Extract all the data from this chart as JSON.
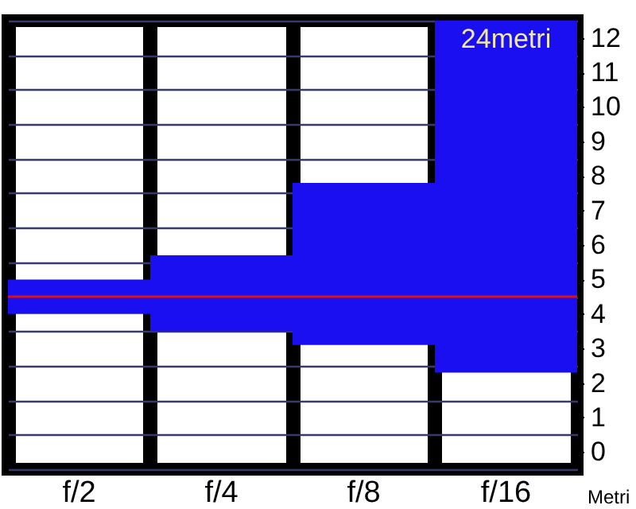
{
  "chart_data": {
    "type": "bar",
    "ylabel": "Metri",
    "categories": [
      "f/2",
      "f/4",
      "f/8",
      "f/16"
    ],
    "base": [
      4.0,
      3.5,
      3.1,
      2.3
    ],
    "values": [
      1.0,
      2.2,
      4.7,
      10.2
    ],
    "color": "#1a0ff0",
    "ylim": [
      -0.5,
      12.5
    ],
    "yticks": [
      {
        "value": -0.5,
        "label": null
      },
      0,
      {
        "value": 0.5,
        "label": null
      },
      1,
      {
        "value": 1.5,
        "label": null
      },
      2,
      {
        "value": 2.5,
        "label": null
      },
      3,
      {
        "value": 3.5,
        "label": null
      },
      4,
      {
        "value": 4.5,
        "label": null
      },
      5,
      {
        "value": 5.5,
        "label": null
      },
      6,
      {
        "value": 6.5,
        "label": null
      },
      7,
      {
        "value": 7.5,
        "label": null
      },
      8,
      {
        "value": 8.5,
        "label": null
      },
      9,
      {
        "value": 9.5,
        "label": null
      },
      10,
      {
        "value": 10.5,
        "label": null
      },
      11,
      {
        "value": 11.5,
        "label": null
      },
      12,
      {
        "value": 12.5,
        "label": null
      }
    ],
    "grid": true,
    "ref_lines": [
      {
        "axis": "y",
        "value": 4.5,
        "color": "#e01010"
      }
    ],
    "annotations": [
      "24metri"
    ]
  }
}
